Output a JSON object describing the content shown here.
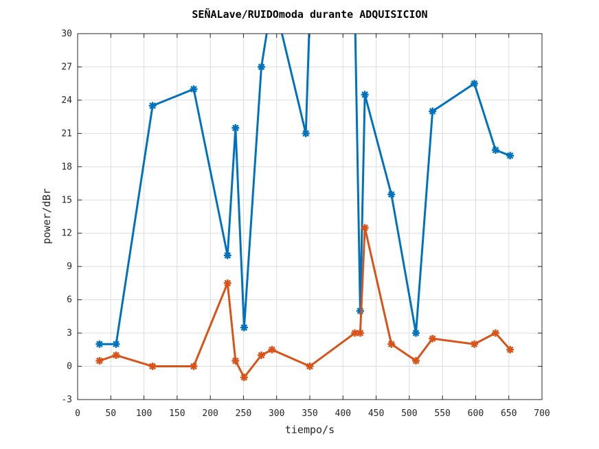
{
  "chart_data": {
    "type": "line",
    "title": "SEÑALave/RUIDOmoda durante ADQUISICION",
    "xlabel": "tiempo/s",
    "ylabel": "power/dBr",
    "xlim": [
      0,
      700
    ],
    "ylim": [
      -3,
      30
    ],
    "xticks": [
      0,
      50,
      100,
      150,
      200,
      250,
      300,
      350,
      400,
      450,
      500,
      550,
      600,
      650,
      700
    ],
    "yticks": [
      -3,
      0,
      3,
      6,
      9,
      12,
      15,
      18,
      21,
      24,
      27,
      30
    ],
    "grid": true,
    "series": [
      {
        "color": "#0072BD",
        "marker": "asterisk",
        "x": [
          33,
          58,
          113,
          175,
          226,
          238,
          251,
          277,
          293,
          304,
          344,
          350,
          418,
          426,
          433,
          473,
          510,
          535,
          598,
          630,
          652
        ],
        "y": [
          2,
          2,
          23.5,
          25,
          10,
          21.5,
          3.5,
          27,
          33,
          31,
          21,
          32,
          32,
          5,
          24.5,
          15.5,
          3,
          23,
          25.5,
          19.5,
          19
        ]
      },
      {
        "color": "#D95319",
        "marker": "asterisk",
        "x": [
          33,
          58,
          113,
          175,
          226,
          238,
          251,
          277,
          293,
          350,
          418,
          426,
          433,
          473,
          510,
          535,
          598,
          630,
          652
        ],
        "y": [
          0.5,
          1,
          0,
          0,
          7.5,
          0.5,
          -1,
          1,
          1.5,
          0,
          3,
          3,
          12.5,
          2,
          0.5,
          2.5,
          2,
          3,
          1.5
        ]
      }
    ]
  }
}
